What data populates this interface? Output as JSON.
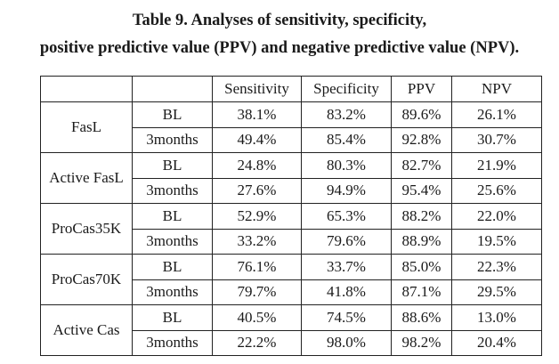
{
  "title": {
    "line1": "Table 9. Analyses of sensitivity, specificity,",
    "line2": "positive predictive value (PPV) and negative predictive value (NPV)."
  },
  "table": {
    "columns": [
      "",
      "",
      "Sensitivity",
      "Specificity",
      "PPV",
      "NPV"
    ],
    "groups": [
      {
        "name": "FasL",
        "rows": [
          {
            "time": "BL",
            "values": [
              "38.1%",
              "83.2%",
              "89.6%",
              "26.1%"
            ]
          },
          {
            "time": "3months",
            "values": [
              "49.4%",
              "85.4%",
              "92.8%",
              "30.7%"
            ]
          }
        ]
      },
      {
        "name": "Active FasL",
        "rows": [
          {
            "time": "BL",
            "values": [
              "24.8%",
              "80.3%",
              "82.7%",
              "21.9%"
            ]
          },
          {
            "time": "3months",
            "values": [
              "27.6%",
              "94.9%",
              "95.4%",
              "25.6%"
            ]
          }
        ]
      },
      {
        "name": "ProCas35K",
        "rows": [
          {
            "time": "BL",
            "values": [
              "52.9%",
              "65.3%",
              "88.2%",
              "22.0%"
            ]
          },
          {
            "time": "3months",
            "values": [
              "33.2%",
              "79.6%",
              "88.9%",
              "19.5%"
            ]
          }
        ]
      },
      {
        "name": "ProCas70K",
        "rows": [
          {
            "time": "BL",
            "values": [
              "76.1%",
              "33.7%",
              "85.0%",
              "22.3%"
            ]
          },
          {
            "time": "3months",
            "values": [
              "79.7%",
              "41.8%",
              "87.1%",
              "29.5%"
            ]
          }
        ]
      },
      {
        "name": "Active Cas",
        "rows": [
          {
            "time": "BL",
            "values": [
              "40.5%",
              "74.5%",
              "88.6%",
              "13.0%"
            ]
          },
          {
            "time": "3months",
            "values": [
              "22.2%",
              "98.0%",
              "98.2%",
              "20.4%"
            ]
          }
        ]
      }
    ]
  }
}
